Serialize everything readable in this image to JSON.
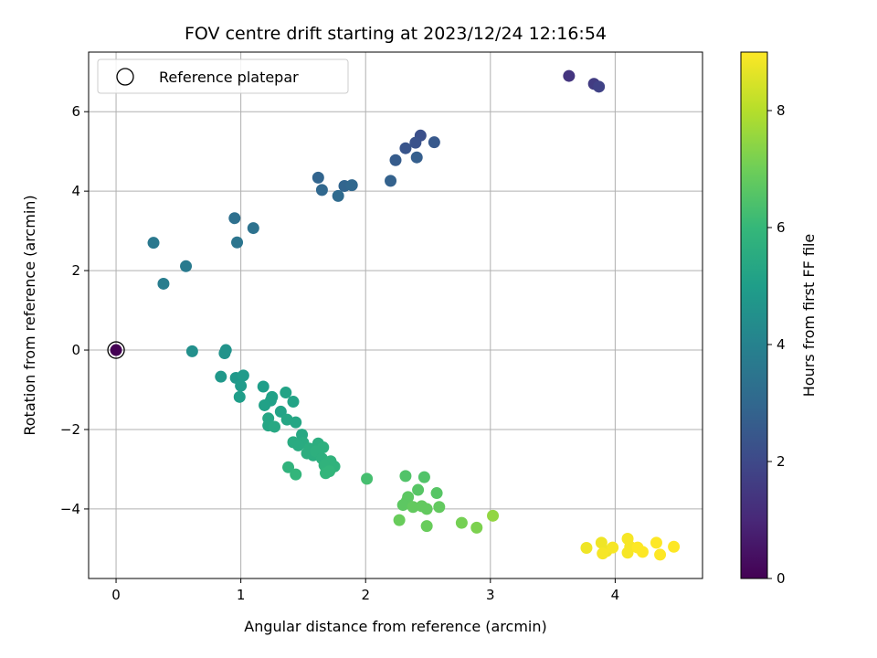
{
  "chart_data": {
    "type": "scatter",
    "title": "FOV centre drift starting at 2023/12/24 12:16:54",
    "xlabel": "Angular distance from reference (arcmin)",
    "ylabel": "Rotation from reference (arcmin)",
    "xlim": [
      -0.22,
      4.7
    ],
    "ylim": [
      -5.75,
      7.5
    ],
    "xticks": [
      0,
      1,
      2,
      3,
      4
    ],
    "yticks": [
      -4,
      -2,
      0,
      2,
      4,
      6
    ],
    "grid": true,
    "legend": {
      "position": "top-left",
      "entries": [
        "Reference platepar"
      ]
    },
    "reference_point": {
      "x": 0,
      "y": 0,
      "hours": 0
    },
    "colorbar": {
      "label": "Hours from first FF file",
      "range": [
        0,
        9
      ],
      "ticks": [
        0,
        2,
        4,
        6,
        8
      ],
      "colormap": "viridis",
      "stops": [
        "#440154",
        "#482878",
        "#3e4989",
        "#31688e",
        "#26828e",
        "#1f9e89",
        "#35b779",
        "#6ece58",
        "#b5de2b",
        "#fde725"
      ]
    },
    "points": [
      {
        "x": 0.0,
        "y": 0.0,
        "hours": 0.0
      },
      {
        "x": 3.63,
        "y": 6.9,
        "hours": 1.4
      },
      {
        "x": 3.83,
        "y": 6.7,
        "hours": 1.6
      },
      {
        "x": 3.87,
        "y": 6.63,
        "hours": 1.8
      },
      {
        "x": 2.44,
        "y": 5.4,
        "hours": 2.2
      },
      {
        "x": 2.4,
        "y": 5.22,
        "hours": 2.3
      },
      {
        "x": 2.32,
        "y": 5.08,
        "hours": 2.4
      },
      {
        "x": 2.55,
        "y": 5.23,
        "hours": 2.5
      },
      {
        "x": 2.24,
        "y": 4.78,
        "hours": 2.6
      },
      {
        "x": 2.41,
        "y": 4.85,
        "hours": 2.7
      },
      {
        "x": 2.2,
        "y": 4.26,
        "hours": 2.8
      },
      {
        "x": 1.62,
        "y": 4.34,
        "hours": 2.9
      },
      {
        "x": 1.65,
        "y": 4.03,
        "hours": 3.0
      },
      {
        "x": 1.83,
        "y": 4.13,
        "hours": 2.9
      },
      {
        "x": 1.89,
        "y": 4.15,
        "hours": 3.0
      },
      {
        "x": 1.78,
        "y": 3.88,
        "hours": 3.1
      },
      {
        "x": 0.95,
        "y": 3.32,
        "hours": 3.3
      },
      {
        "x": 1.1,
        "y": 3.07,
        "hours": 3.4
      },
      {
        "x": 0.97,
        "y": 2.71,
        "hours": 3.5
      },
      {
        "x": 0.3,
        "y": 2.7,
        "hours": 3.6
      },
      {
        "x": 0.56,
        "y": 2.11,
        "hours": 3.7
      },
      {
        "x": 0.38,
        "y": 1.67,
        "hours": 3.8
      },
      {
        "x": 0.61,
        "y": -0.03,
        "hours": 4.5
      },
      {
        "x": 0.88,
        "y": 0.0,
        "hours": 4.6
      },
      {
        "x": 0.87,
        "y": -0.08,
        "hours": 4.6
      },
      {
        "x": 0.84,
        "y": -0.67,
        "hours": 4.8
      },
      {
        "x": 0.96,
        "y": -0.7,
        "hours": 4.8
      },
      {
        "x": 1.02,
        "y": -0.64,
        "hours": 4.9
      },
      {
        "x": 1.0,
        "y": -0.9,
        "hours": 4.9
      },
      {
        "x": 0.99,
        "y": -1.18,
        "hours": 5.0
      },
      {
        "x": 1.18,
        "y": -0.92,
        "hours": 5.0
      },
      {
        "x": 1.25,
        "y": -1.18,
        "hours": 5.1
      },
      {
        "x": 1.24,
        "y": -1.27,
        "hours": 5.1
      },
      {
        "x": 1.19,
        "y": -1.39,
        "hours": 5.1
      },
      {
        "x": 1.36,
        "y": -1.07,
        "hours": 5.2
      },
      {
        "x": 1.42,
        "y": -1.3,
        "hours": 5.2
      },
      {
        "x": 1.32,
        "y": -1.55,
        "hours": 5.2
      },
      {
        "x": 1.22,
        "y": -1.72,
        "hours": 5.3
      },
      {
        "x": 1.37,
        "y": -1.75,
        "hours": 5.3
      },
      {
        "x": 1.44,
        "y": -1.82,
        "hours": 5.3
      },
      {
        "x": 1.22,
        "y": -1.9,
        "hours": 5.3
      },
      {
        "x": 1.27,
        "y": -1.93,
        "hours": 5.4
      },
      {
        "x": 1.49,
        "y": -2.13,
        "hours": 5.4
      },
      {
        "x": 1.42,
        "y": -2.32,
        "hours": 5.5
      },
      {
        "x": 1.5,
        "y": -2.33,
        "hours": 5.5
      },
      {
        "x": 1.46,
        "y": -2.4,
        "hours": 5.5
      },
      {
        "x": 1.55,
        "y": -2.48,
        "hours": 5.6
      },
      {
        "x": 1.53,
        "y": -2.6,
        "hours": 5.6
      },
      {
        "x": 1.58,
        "y": -2.65,
        "hours": 5.6
      },
      {
        "x": 1.62,
        "y": -2.35,
        "hours": 5.6
      },
      {
        "x": 1.66,
        "y": -2.45,
        "hours": 5.7
      },
      {
        "x": 1.6,
        "y": -2.55,
        "hours": 5.7
      },
      {
        "x": 1.65,
        "y": -2.73,
        "hours": 5.7
      },
      {
        "x": 1.72,
        "y": -2.8,
        "hours": 5.8
      },
      {
        "x": 1.67,
        "y": -2.9,
        "hours": 5.8
      },
      {
        "x": 1.75,
        "y": -2.93,
        "hours": 5.8
      },
      {
        "x": 1.38,
        "y": -2.95,
        "hours": 5.8
      },
      {
        "x": 1.44,
        "y": -3.13,
        "hours": 5.9
      },
      {
        "x": 1.68,
        "y": -3.1,
        "hours": 5.9
      },
      {
        "x": 1.71,
        "y": -3.05,
        "hours": 5.9
      },
      {
        "x": 2.01,
        "y": -3.24,
        "hours": 6.3
      },
      {
        "x": 2.32,
        "y": -3.17,
        "hours": 6.5
      },
      {
        "x": 2.47,
        "y": -3.2,
        "hours": 6.5
      },
      {
        "x": 2.42,
        "y": -3.52,
        "hours": 6.6
      },
      {
        "x": 2.57,
        "y": -3.6,
        "hours": 6.6
      },
      {
        "x": 2.34,
        "y": -3.7,
        "hours": 6.7
      },
      {
        "x": 2.33,
        "y": -3.8,
        "hours": 6.7
      },
      {
        "x": 2.3,
        "y": -3.9,
        "hours": 6.7
      },
      {
        "x": 2.38,
        "y": -3.95,
        "hours": 6.8
      },
      {
        "x": 2.45,
        "y": -3.93,
        "hours": 6.8
      },
      {
        "x": 2.49,
        "y": -4.0,
        "hours": 6.8
      },
      {
        "x": 2.59,
        "y": -3.95,
        "hours": 6.8
      },
      {
        "x": 2.27,
        "y": -4.28,
        "hours": 6.9
      },
      {
        "x": 2.49,
        "y": -4.43,
        "hours": 6.9
      },
      {
        "x": 2.77,
        "y": -4.35,
        "hours": 7.1
      },
      {
        "x": 2.89,
        "y": -4.47,
        "hours": 7.2
      },
      {
        "x": 3.02,
        "y": -4.17,
        "hours": 7.5
      },
      {
        "x": 3.77,
        "y": -4.98,
        "hours": 8.8
      },
      {
        "x": 3.89,
        "y": -4.85,
        "hours": 8.8
      },
      {
        "x": 3.93,
        "y": -5.06,
        "hours": 8.8
      },
      {
        "x": 3.9,
        "y": -5.12,
        "hours": 8.9
      },
      {
        "x": 3.98,
        "y": -4.97,
        "hours": 8.9
      },
      {
        "x": 4.1,
        "y": -4.75,
        "hours": 8.9
      },
      {
        "x": 4.12,
        "y": -4.95,
        "hours": 8.9
      },
      {
        "x": 4.1,
        "y": -5.1,
        "hours": 8.9
      },
      {
        "x": 4.18,
        "y": -4.97,
        "hours": 9.0
      },
      {
        "x": 4.22,
        "y": -5.08,
        "hours": 9.0
      },
      {
        "x": 4.33,
        "y": -4.85,
        "hours": 9.0
      },
      {
        "x": 4.36,
        "y": -5.15,
        "hours": 9.0
      },
      {
        "x": 4.47,
        "y": -4.95,
        "hours": 9.0
      }
    ]
  }
}
